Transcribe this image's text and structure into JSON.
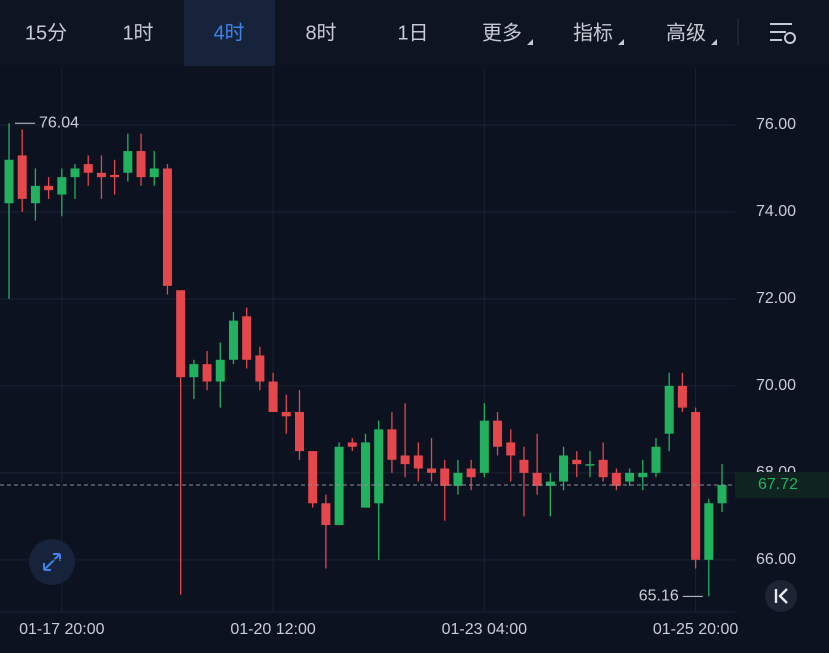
{
  "tabs": [
    "15分",
    "1时",
    "4时",
    "8时",
    "1日",
    "更多",
    "指标",
    "高级"
  ],
  "active_tab": 2,
  "chart_data": {
    "type": "candlestick",
    "up_color": "#22b15f",
    "down_color": "#e4474c",
    "categories": [
      null,
      null,
      null,
      null,
      "01-17 20:00",
      null,
      null,
      null,
      null,
      null,
      null,
      null,
      null,
      null,
      null,
      null,
      null,
      null,
      null,
      null,
      "01-20 12:00",
      null,
      null,
      null,
      null,
      null,
      null,
      null,
      null,
      null,
      null,
      null,
      null,
      null,
      null,
      null,
      "01-23 04:00",
      null,
      null,
      null,
      null,
      null,
      null,
      null,
      null,
      null,
      null,
      null,
      null,
      null,
      null,
      null,
      "01-25 20:00",
      null,
      null
    ],
    "open": [
      74.2,
      75.3,
      74.2,
      74.6,
      74.4,
      74.8,
      75.1,
      74.9,
      74.85,
      74.9,
      75.4,
      74.8,
      75.0,
      72.2,
      70.2,
      70.5,
      70.1,
      70.6,
      71.6,
      70.7,
      70.1,
      69.4,
      69.4,
      68.5,
      67.3,
      66.8,
      68.7,
      67.2,
      67.3,
      69.0,
      68.4,
      68.4,
      68.1,
      68.1,
      67.7,
      68.1,
      68.0,
      69.2,
      68.7,
      68.3,
      68.0,
      67.7,
      67.8,
      68.3,
      68.2,
      68.3,
      68.0,
      67.8,
      67.9,
      68.0,
      68.9,
      70.0,
      69.4,
      66.0,
      67.3
    ],
    "high": [
      76.04,
      75.9,
      75.0,
      74.8,
      75.0,
      75.1,
      75.3,
      75.3,
      75.2,
      75.8,
      75.8,
      75.4,
      75.1,
      72.2,
      70.6,
      70.8,
      71.0,
      71.7,
      71.8,
      70.9,
      70.3,
      69.8,
      69.9,
      68.5,
      67.5,
      68.7,
      68.8,
      68.9,
      69.2,
      69.4,
      69.6,
      68.7,
      68.8,
      68.3,
      68.3,
      68.3,
      69.6,
      69.4,
      69.0,
      68.6,
      68.9,
      68.0,
      68.6,
      68.5,
      68.5,
      68.7,
      68.1,
      68.1,
      68.3,
      68.8,
      70.3,
      70.3,
      69.5,
      67.4,
      68.2
    ],
    "low": [
      72.0,
      74.0,
      73.8,
      74.3,
      73.9,
      74.3,
      74.6,
      74.3,
      74.4,
      74.7,
      74.6,
      74.6,
      72.1,
      65.2,
      69.7,
      69.9,
      69.5,
      70.5,
      70.4,
      69.9,
      69.4,
      68.9,
      68.3,
      67.2,
      65.8,
      66.8,
      68.5,
      67.2,
      66.0,
      68.0,
      67.9,
      67.8,
      67.8,
      66.9,
      67.5,
      67.6,
      67.9,
      68.4,
      67.8,
      67.0,
      67.5,
      67.0,
      67.6,
      67.9,
      67.9,
      67.8,
      67.6,
      67.7,
      67.6,
      67.9,
      68.5,
      69.4,
      65.8,
      65.16,
      67.1
    ],
    "close": [
      75.2,
      74.3,
      74.6,
      74.5,
      74.8,
      75.0,
      74.9,
      74.8,
      74.8,
      75.4,
      74.8,
      75.0,
      72.3,
      70.2,
      70.5,
      70.1,
      70.6,
      71.5,
      70.6,
      70.1,
      69.4,
      69.3,
      68.5,
      67.3,
      66.8,
      68.6,
      68.6,
      68.7,
      69.0,
      68.3,
      68.2,
      68.1,
      68.0,
      67.7,
      68.0,
      67.9,
      69.2,
      68.6,
      68.4,
      68.0,
      67.7,
      67.8,
      68.4,
      68.2,
      68.2,
      67.9,
      67.7,
      68.0,
      68.0,
      68.6,
      70.0,
      69.5,
      66.0,
      67.3,
      67.72
    ],
    "ylim": [
      64.8,
      77.31
    ],
    "yticks": [
      {
        "value": 66,
        "label": "66.00"
      },
      {
        "value": 68,
        "label": "68.00"
      },
      {
        "value": 70,
        "label": "70.00"
      },
      {
        "value": 72,
        "label": "72.00"
      },
      {
        "value": 74,
        "label": "74.00"
      },
      {
        "value": 76,
        "label": "76.00"
      }
    ],
    "grid": true
  }
}
